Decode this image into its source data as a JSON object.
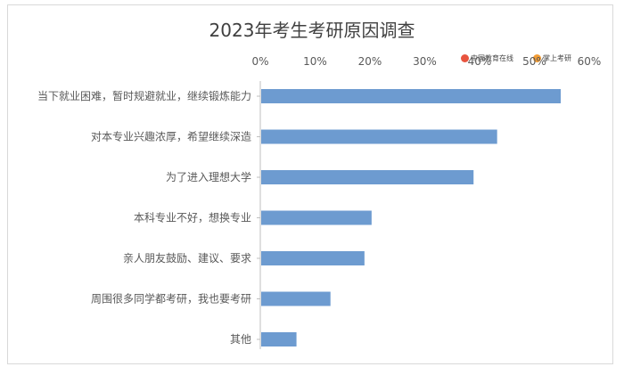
{
  "chart_data": {
    "type": "bar",
    "orientation": "horizontal",
    "title": "2023年考生考研原因调查",
    "categories": [
      "当下就业困难，暂时规避就业，继续锻炼能力",
      "对本专业兴趣浓厚，希望继续深造",
      "为了进入理想大学",
      "本科专业不好，想换专业",
      "亲人朋友鼓励、建议、要求",
      "周围很多同学都考研，我也要考研",
      "其他"
    ],
    "values": [
      54.8,
      43.2,
      38.9,
      20.3,
      19.0,
      12.8,
      6.6
    ],
    "xlim": [
      0,
      60
    ],
    "xticks": [
      "0%",
      "10%",
      "20%",
      "30%",
      "40%",
      "50%",
      "60%"
    ],
    "axis_position": "top",
    "gridlines": false,
    "bar_color": "#6d9bd0"
  },
  "watermarks": [
    {
      "text": "中国教育在线",
      "color": "#e8543f"
    },
    {
      "text": "掌上考研",
      "color": "#f39c33"
    }
  ]
}
